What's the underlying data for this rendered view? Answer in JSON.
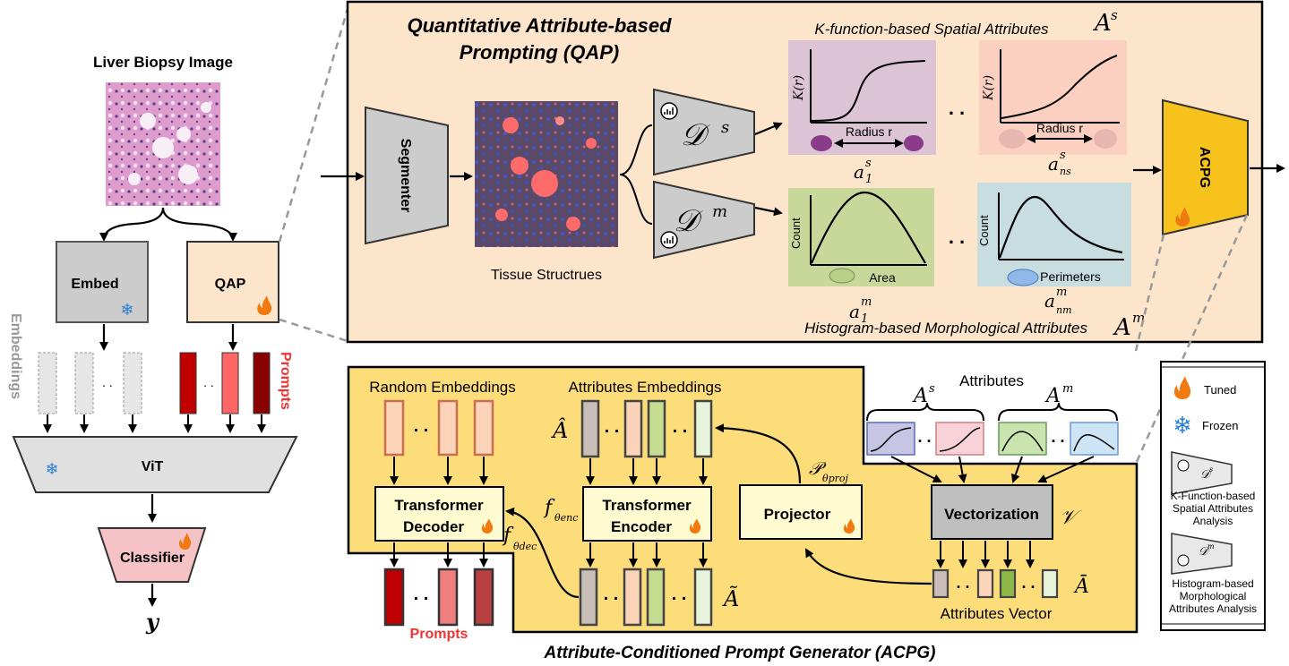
{
  "left": {
    "biopsy_title": "Liver Biopsy Image",
    "embed": "Embed",
    "qap": "QAP",
    "embeddings_label": "Embeddings",
    "prompts_label": "Prompts",
    "vit": "ViT",
    "classifier": "Classifier",
    "output": "y",
    "dots": ". ."
  },
  "qap_panel": {
    "title_line1": "Quantitative Attribute-based",
    "title_line2": "Prompting (QAP)",
    "segmenter": "Segmenter",
    "tissue": "Tissue Structrues",
    "d_s": "𝒟",
    "d_s_sup": "s",
    "d_m": "𝒟",
    "d_m_sup": "m",
    "spatial_title": "K-function-based Spatial Attributes",
    "spatial_sym": "A",
    "spatial_sym_sup": "s",
    "kr": "K(r)",
    "radius": "Radius r",
    "a1s": "a",
    "a1s_sup": "s",
    "a1s_sub": "1",
    "ans": "a",
    "ans_sup": "s",
    "ans_sub": "ns",
    "count": "Count",
    "area": "Area",
    "perimeters": "Perimeters",
    "a1m": "a",
    "a1m_sup": "m",
    "a1m_sub": "1",
    "anm": "a",
    "anm_sup": "m",
    "anm_sub": "nm",
    "morph_title": "Histogram-based Morphological Attributes",
    "morph_sym": "A",
    "morph_sym_sup": "m",
    "dots": ". .",
    "acpg": "ACPG"
  },
  "acpg_panel": {
    "random_emb": "Random Embeddings",
    "attr_emb": "Attributes Embeddings",
    "a_hat": "Â",
    "a_tilde": "Ã",
    "a_bar": "Ā",
    "attributes": "Attributes",
    "as_sym": "A",
    "as_sup": "s",
    "am_sym": "A",
    "am_sup": "m",
    "decoder_l1": "Transformer",
    "decoder_l2": "Decoder",
    "encoder_l1": "Transformer",
    "encoder_l2": "Encoder",
    "projector": "Projector",
    "vectorization": "Vectorization",
    "v_sym": "𝒱",
    "f_enc": "f",
    "f_enc_sub": "θenc",
    "f_dec": "f",
    "f_dec_sub": "θdec",
    "p_proj": "𝒫",
    "p_proj_sub": "θproj",
    "attr_vector": "Attributes Vector",
    "prompts": "Prompts",
    "caption": "Attribute-Conditioned Prompt Generator (ACPG)",
    "dots": ". ."
  },
  "legend": {
    "tuned": "Tuned",
    "frozen": "Frozen",
    "ds": "𝒟",
    "ds_sup": "s",
    "ks_l1": "K-Function-based",
    "ks_l2": "Spatial Attributes",
    "ks_l3": "Analysis",
    "dm": "𝒟",
    "dm_sup": "m",
    "hm_l1": "Histogram-based",
    "hm_l2": "Morphological",
    "hm_l3": "Attributes Analysis"
  },
  "colors": {
    "qap_bg": "#fde5cc",
    "acpg_bg": "#fddc7a",
    "acpg_block": "#f7c21c",
    "gray_block": "#cccccc",
    "prompt_red": "#c00000",
    "prompt_text": "#ff4040"
  }
}
